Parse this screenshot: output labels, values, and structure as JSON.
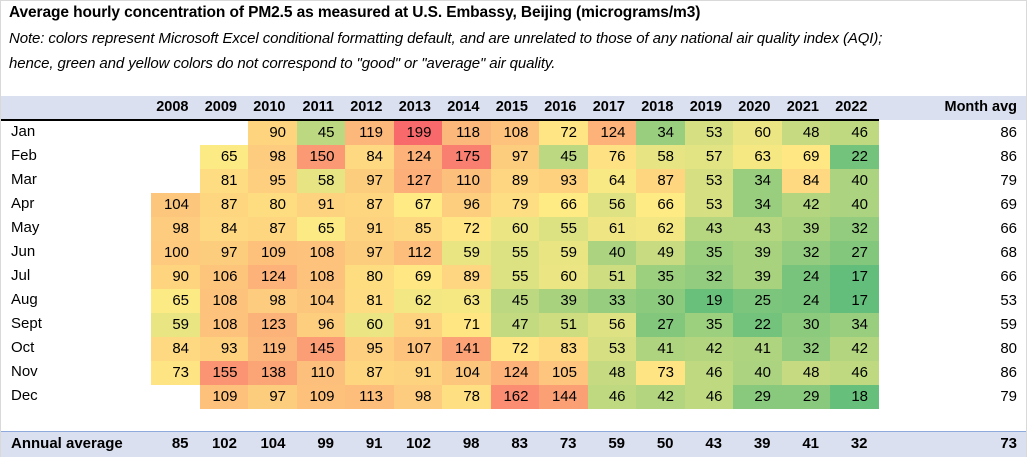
{
  "chart_data": {
    "type": "heatmap",
    "title": "Average hourly concentration of PM2.5 as measured at U.S. Embassy, Beijing (micrograms/m3)",
    "notes": [
      "Note: colors represent Microsoft Excel conditional formatting default, and are unrelated to those of any national air quality index (AQI);",
      "hence, green and yellow colors do not correspond to \"good\" or \"average\" air quality."
    ],
    "columns": [
      "2008",
      "2009",
      "2010",
      "2011",
      "2012",
      "2013",
      "2014",
      "2015",
      "2016",
      "2017",
      "2018",
      "2019",
      "2020",
      "2021",
      "2022"
    ],
    "month_avg_header": "Month avg",
    "rows": [
      {
        "month": "Jan",
        "values": [
          null,
          null,
          90,
          45,
          119,
          199,
          118,
          108,
          72,
          124,
          34,
          53,
          60,
          48,
          46
        ],
        "avg": 86
      },
      {
        "month": "Feb",
        "values": [
          null,
          65,
          98,
          150,
          84,
          124,
          175,
          97,
          45,
          76,
          58,
          57,
          63,
          69,
          22
        ],
        "avg": 86
      },
      {
        "month": "Mar",
        "values": [
          null,
          81,
          95,
          58,
          97,
          127,
          110,
          89,
          93,
          64,
          87,
          53,
          34,
          84,
          40
        ],
        "avg": 79
      },
      {
        "month": "Apr",
        "values": [
          104,
          87,
          80,
          91,
          87,
          67,
          96,
          79,
          66,
          56,
          66,
          53,
          34,
          42,
          40
        ],
        "avg": 69
      },
      {
        "month": "May",
        "values": [
          98,
          84,
          87,
          65,
          91,
          85,
          72,
          60,
          55,
          61,
          62,
          43,
          43,
          39,
          32
        ],
        "avg": 66
      },
      {
        "month": "Jun",
        "values": [
          100,
          97,
          109,
          108,
          97,
          112,
          59,
          55,
          59,
          40,
          49,
          35,
          39,
          32,
          27
        ],
        "avg": 68
      },
      {
        "month": "Jul",
        "values": [
          90,
          106,
          124,
          108,
          80,
          69,
          89,
          55,
          60,
          51,
          35,
          32,
          39,
          24,
          17
        ],
        "avg": 66
      },
      {
        "month": "Aug",
        "values": [
          65,
          108,
          98,
          104,
          81,
          62,
          63,
          45,
          39,
          33,
          30,
          19,
          25,
          24,
          17
        ],
        "avg": 53
      },
      {
        "month": "Sept",
        "values": [
          59,
          108,
          123,
          96,
          60,
          91,
          71,
          47,
          51,
          56,
          27,
          35,
          22,
          30,
          34
        ],
        "avg": 59
      },
      {
        "month": "Oct",
        "values": [
          84,
          93,
          119,
          145,
          95,
          107,
          141,
          72,
          83,
          53,
          41,
          42,
          41,
          32,
          42
        ],
        "avg": 80
      },
      {
        "month": "Nov",
        "values": [
          73,
          155,
          138,
          110,
          87,
          91,
          104,
          124,
          105,
          48,
          73,
          46,
          40,
          48,
          46
        ],
        "avg": 86
      },
      {
        "month": "Dec",
        "values": [
          null,
          109,
          97,
          109,
          113,
          98,
          78,
          162,
          144,
          46,
          42,
          46,
          29,
          29,
          18
        ],
        "avg": 79
      }
    ],
    "annual_label": "Annual average",
    "annual": [
      85,
      102,
      104,
      99,
      91,
      102,
      98,
      83,
      73,
      59,
      50,
      43,
      39,
      41,
      32
    ],
    "overall_avg": 73,
    "color_scale": {
      "low": "#63be7b",
      "mid": "#ffeb84",
      "high": "#f8696b"
    }
  }
}
